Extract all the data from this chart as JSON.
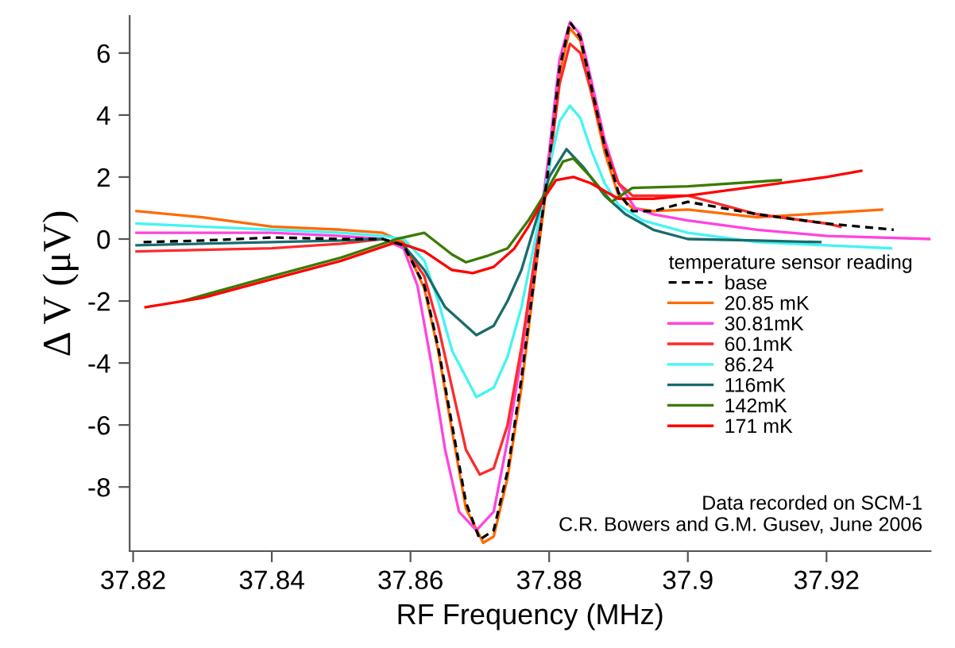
{
  "chart_data": {
    "type": "line",
    "xlabel": "RF Frequency (MHz)",
    "ylabel": "Δ V (μV)",
    "legend_title": "temperature sensor reading",
    "xlim": [
      37.8195,
      37.935
    ],
    "xticks": [
      37.82,
      37.84,
      37.86,
      37.88,
      37.9,
      37.92
    ],
    "ylim": [
      -10.07,
      7.2
    ],
    "yticks": [
      -8,
      -6,
      -4,
      -2,
      0,
      2,
      4,
      6
    ],
    "grid": false,
    "legend": "right",
    "marker": "none",
    "annotations": [
      "Data recorded on SCM-1\nC.R. Bowers and G.M. Gusev, June 2006"
    ],
    "series": [
      {
        "name": "base",
        "color": "#000000",
        "line_style": "dashed",
        "x": [
          37.8215,
          37.83,
          37.84,
          37.85,
          37.856,
          37.859,
          37.862,
          37.864,
          37.866,
          37.868,
          37.87,
          37.872,
          37.874,
          37.876,
          37.878,
          37.88,
          37.8815,
          37.883,
          37.8845,
          37.886,
          37.888,
          37.89,
          37.892,
          37.895,
          37.9,
          37.91,
          37.92,
          37.9297
        ],
        "values": [
          -0.1,
          -0.05,
          0.05,
          0.0,
          0.0,
          -0.2,
          -1.5,
          -3.5,
          -6.0,
          -8.5,
          -9.7,
          -9.4,
          -7.5,
          -4.5,
          -1.0,
          2.5,
          5.5,
          7.0,
          6.5,
          5.0,
          3.0,
          1.5,
          0.9,
          0.9,
          1.2,
          0.8,
          0.5,
          0.3
        ]
      },
      {
        "name": "20.85 mK",
        "color": "#ff6a00",
        "x": [
          37.8205,
          37.83,
          37.84,
          37.85,
          37.856,
          37.859,
          37.862,
          37.864,
          37.866,
          37.868,
          37.8705,
          37.872,
          37.874,
          37.876,
          37.878,
          37.88,
          37.8815,
          37.883,
          37.8845,
          37.886,
          37.888,
          37.89,
          37.892,
          37.895,
          37.9,
          37.91,
          37.928
        ],
        "values": [
          0.9,
          0.7,
          0.4,
          0.3,
          0.2,
          -0.1,
          -1.6,
          -3.6,
          -6.2,
          -8.7,
          -9.8,
          -9.6,
          -7.7,
          -4.8,
          -1.1,
          2.3,
          5.3,
          6.8,
          6.4,
          4.8,
          2.8,
          1.4,
          1.0,
          0.9,
          0.95,
          0.7,
          0.95
        ]
      },
      {
        "name": "30.81mK",
        "color": "#ff44dd",
        "x": [
          37.8205,
          37.83,
          37.84,
          37.85,
          37.856,
          37.859,
          37.861,
          37.863,
          37.865,
          37.867,
          37.8695,
          37.872,
          37.874,
          37.876,
          37.878,
          37.88,
          37.8815,
          37.883,
          37.8845,
          37.886,
          37.888,
          37.89,
          37.8924,
          37.895,
          37.9,
          37.91,
          37.92,
          37.935
        ],
        "values": [
          0.2,
          0.2,
          0.2,
          0.1,
          0.0,
          -0.3,
          -1.5,
          -4.0,
          -6.8,
          -8.8,
          -9.4,
          -8.8,
          -6.5,
          -3.8,
          -0.6,
          2.8,
          5.8,
          7.0,
          6.6,
          5.2,
          3.2,
          1.8,
          1.0,
          0.8,
          0.6,
          0.3,
          0.1,
          0.0
        ]
      },
      {
        "name": "60.1mK",
        "color": "#ff2a2a",
        "x": [
          37.8205,
          37.83,
          37.84,
          37.85,
          37.856,
          37.859,
          37.862,
          37.864,
          37.866,
          37.868,
          37.87,
          37.872,
          37.874,
          37.876,
          37.878,
          37.88,
          37.8815,
          37.883,
          37.8845,
          37.886,
          37.888,
          37.89,
          37.892,
          37.895,
          37.9,
          37.91,
          37.92,
          37.922
        ],
        "values": [
          -0.4,
          -0.35,
          -0.3,
          -0.15,
          0.0,
          -0.2,
          -1.2,
          -2.8,
          -4.8,
          -6.8,
          -7.6,
          -7.4,
          -6.0,
          -3.5,
          -0.5,
          2.3,
          5.0,
          6.3,
          6.0,
          4.8,
          3.0,
          1.8,
          1.4,
          1.4,
          1.4,
          0.8,
          0.5,
          0.4
        ]
      },
      {
        "name": "86.24",
        "color": "#44f4f4",
        "x": [
          37.8205,
          37.83,
          37.84,
          37.85,
          37.856,
          37.859,
          37.862,
          37.864,
          37.866,
          37.8695,
          37.872,
          37.874,
          37.876,
          37.878,
          37.88,
          37.8815,
          37.883,
          37.8845,
          37.886,
          37.888,
          37.89,
          37.8935,
          37.9,
          37.91,
          37.92,
          37.9293
        ],
        "values": [
          0.5,
          0.4,
          0.3,
          0.2,
          0.1,
          0.0,
          -0.7,
          -2.0,
          -3.6,
          -5.1,
          -4.8,
          -3.8,
          -2.2,
          0.0,
          2.3,
          3.8,
          4.3,
          3.9,
          2.9,
          1.8,
          1.1,
          0.6,
          0.2,
          -0.1,
          -0.2,
          -0.3
        ]
      },
      {
        "name": "116mK",
        "color": "#1a6b6b",
        "x": [
          37.8205,
          37.83,
          37.84,
          37.85,
          37.856,
          37.859,
          37.862,
          37.865,
          37.8695,
          37.872,
          37.874,
          37.876,
          37.878,
          37.88,
          37.8825,
          37.885,
          37.888,
          37.891,
          37.895,
          37.9,
          37.91,
          37.9191
        ],
        "values": [
          -0.2,
          -0.15,
          -0.1,
          -0.05,
          0.0,
          -0.2,
          -1.0,
          -2.2,
          -3.1,
          -2.8,
          -2.0,
          -1.0,
          0.5,
          2.0,
          2.9,
          2.3,
          1.4,
          0.8,
          0.3,
          0.0,
          -0.05,
          -0.1
        ]
      },
      {
        "name": "142mK",
        "color": "#3a7a00",
        "x": [
          37.8271,
          37.84,
          37.85,
          37.858,
          37.862,
          37.866,
          37.868,
          37.871,
          37.874,
          37.877,
          37.8795,
          37.882,
          37.8835,
          37.886,
          37.889,
          37.892,
          37.9,
          37.9134
        ],
        "values": [
          -2.0,
          -1.2,
          -0.6,
          0.0,
          0.2,
          -0.5,
          -0.75,
          -0.55,
          -0.3,
          0.6,
          1.5,
          2.5,
          2.6,
          2.0,
          1.2,
          1.65,
          1.7,
          1.9
        ]
      },
      {
        "name": "171 mK",
        "color": "#ff0000",
        "x": [
          37.8218,
          37.83,
          37.84,
          37.85,
          37.858,
          37.862,
          37.866,
          37.869,
          37.872,
          37.875,
          37.877,
          37.8795,
          37.881,
          37.8835,
          37.886,
          37.89,
          37.895,
          37.9,
          37.91,
          37.92,
          37.925
        ],
        "values": [
          -2.2,
          -1.9,
          -1.3,
          -0.7,
          -0.1,
          -0.4,
          -1.0,
          -1.1,
          -0.9,
          -0.3,
          0.4,
          1.4,
          1.9,
          2.0,
          1.8,
          1.3,
          1.3,
          1.4,
          1.7,
          2.0,
          2.2
        ]
      }
    ]
  }
}
